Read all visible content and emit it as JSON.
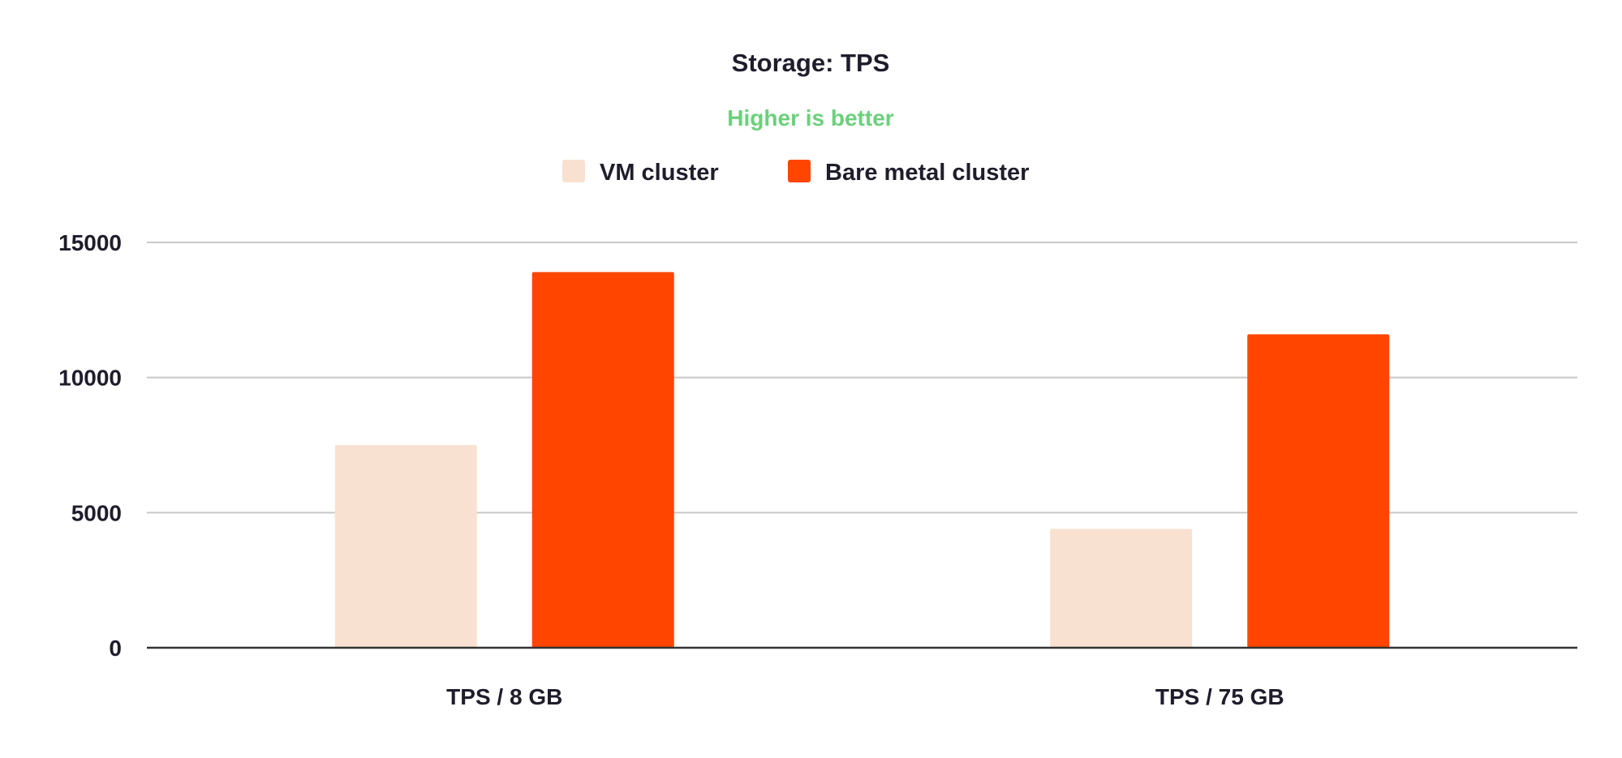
{
  "colors": {
    "vm": "#f8e1d1",
    "bare_metal": "#ff4500",
    "subtitle": "#6cd07c"
  },
  "chart_data": {
    "type": "bar",
    "title": "Storage: TPS",
    "subtitle": "Higher is better",
    "categories": [
      "TPS / 8 GB",
      "TPS / 75 GB"
    ],
    "series": [
      {
        "name": "VM cluster",
        "values": [
          7500,
          4400
        ]
      },
      {
        "name": "Bare metal cluster",
        "values": [
          13900,
          11600
        ]
      }
    ],
    "ylim": [
      0,
      15000
    ],
    "yticks": [
      0,
      5000,
      10000,
      15000
    ],
    "grid": true,
    "legend": "top-center",
    "xlabel": "",
    "ylabel": ""
  }
}
